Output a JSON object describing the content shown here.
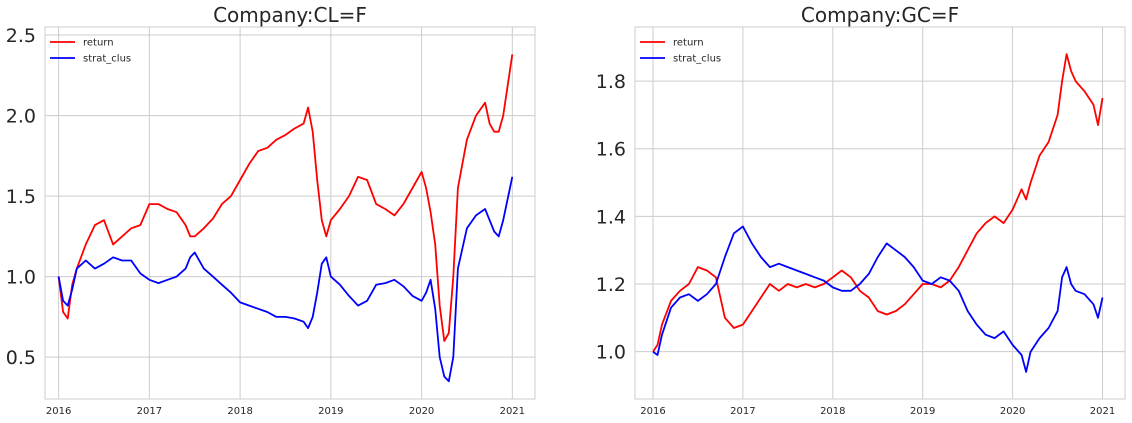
{
  "chart_data": [
    {
      "type": "line",
      "title": "Company:CL=F",
      "xlabel": "",
      "ylabel": "",
      "xlim": [
        2015.85,
        2021.25
      ],
      "ylim": [
        0.24,
        2.55
      ],
      "x_ticks": [
        2016,
        2017,
        2018,
        2019,
        2020,
        2021
      ],
      "x_tick_labels": [
        "2016",
        "2017",
        "2018",
        "2019",
        "2020",
        "2021"
      ],
      "y_ticks": [
        0.5,
        1.0,
        1.5,
        2.0,
        2.5
      ],
      "y_tick_labels": [
        "0.5",
        "1.0",
        "1.5",
        "2.0",
        "2.5"
      ],
      "grid": true,
      "legend_position": "top-left",
      "series": [
        {
          "name": "return",
          "color": "#ff0000",
          "points": [
            [
              2016.0,
              1.0
            ],
            [
              2016.05,
              0.78
            ],
            [
              2016.1,
              0.74
            ],
            [
              2016.15,
              0.95
            ],
            [
              2016.2,
              1.05
            ],
            [
              2016.3,
              1.2
            ],
            [
              2016.4,
              1.32
            ],
            [
              2016.5,
              1.35
            ],
            [
              2016.6,
              1.2
            ],
            [
              2016.7,
              1.25
            ],
            [
              2016.8,
              1.3
            ],
            [
              2016.9,
              1.32
            ],
            [
              2017.0,
              1.45
            ],
            [
              2017.1,
              1.45
            ],
            [
              2017.2,
              1.42
            ],
            [
              2017.3,
              1.4
            ],
            [
              2017.4,
              1.32
            ],
            [
              2017.45,
              1.25
            ],
            [
              2017.5,
              1.25
            ],
            [
              2017.6,
              1.3
            ],
            [
              2017.7,
              1.36
            ],
            [
              2017.8,
              1.45
            ],
            [
              2017.9,
              1.5
            ],
            [
              2018.0,
              1.6
            ],
            [
              2018.1,
              1.7
            ],
            [
              2018.2,
              1.78
            ],
            [
              2018.3,
              1.8
            ],
            [
              2018.4,
              1.85
            ],
            [
              2018.5,
              1.88
            ],
            [
              2018.6,
              1.92
            ],
            [
              2018.7,
              1.95
            ],
            [
              2018.75,
              2.05
            ],
            [
              2018.8,
              1.9
            ],
            [
              2018.85,
              1.6
            ],
            [
              2018.9,
              1.35
            ],
            [
              2018.95,
              1.25
            ],
            [
              2019.0,
              1.35
            ],
            [
              2019.1,
              1.42
            ],
            [
              2019.2,
              1.5
            ],
            [
              2019.3,
              1.62
            ],
            [
              2019.4,
              1.6
            ],
            [
              2019.5,
              1.45
            ],
            [
              2019.6,
              1.42
            ],
            [
              2019.7,
              1.38
            ],
            [
              2019.8,
              1.45
            ],
            [
              2019.9,
              1.55
            ],
            [
              2020.0,
              1.65
            ],
            [
              2020.05,
              1.55
            ],
            [
              2020.1,
              1.4
            ],
            [
              2020.15,
              1.2
            ],
            [
              2020.2,
              0.82
            ],
            [
              2020.25,
              0.6
            ],
            [
              2020.3,
              0.65
            ],
            [
              2020.35,
              1.0
            ],
            [
              2020.4,
              1.55
            ],
            [
              2020.5,
              1.85
            ],
            [
              2020.6,
              2.0
            ],
            [
              2020.7,
              2.08
            ],
            [
              2020.75,
              1.95
            ],
            [
              2020.8,
              1.9
            ],
            [
              2020.85,
              1.9
            ],
            [
              2020.9,
              2.0
            ],
            [
              2021.0,
              2.38
            ]
          ]
        },
        {
          "name": "strat_clus",
          "color": "#0000ff",
          "points": [
            [
              2016.0,
              1.0
            ],
            [
              2016.05,
              0.85
            ],
            [
              2016.1,
              0.82
            ],
            [
              2016.15,
              0.92
            ],
            [
              2016.2,
              1.05
            ],
            [
              2016.3,
              1.1
            ],
            [
              2016.4,
              1.05
            ],
            [
              2016.5,
              1.08
            ],
            [
              2016.6,
              1.12
            ],
            [
              2016.7,
              1.1
            ],
            [
              2016.8,
              1.1
            ],
            [
              2016.9,
              1.02
            ],
            [
              2017.0,
              0.98
            ],
            [
              2017.1,
              0.96
            ],
            [
              2017.2,
              0.98
            ],
            [
              2017.3,
              1.0
            ],
            [
              2017.4,
              1.05
            ],
            [
              2017.45,
              1.12
            ],
            [
              2017.5,
              1.15
            ],
            [
              2017.6,
              1.05
            ],
            [
              2017.7,
              1.0
            ],
            [
              2017.8,
              0.95
            ],
            [
              2017.9,
              0.9
            ],
            [
              2018.0,
              0.84
            ],
            [
              2018.1,
              0.82
            ],
            [
              2018.2,
              0.8
            ],
            [
              2018.3,
              0.78
            ],
            [
              2018.4,
              0.75
            ],
            [
              2018.5,
              0.75
            ],
            [
              2018.6,
              0.74
            ],
            [
              2018.7,
              0.72
            ],
            [
              2018.75,
              0.68
            ],
            [
              2018.8,
              0.75
            ],
            [
              2018.85,
              0.9
            ],
            [
              2018.9,
              1.08
            ],
            [
              2018.95,
              1.12
            ],
            [
              2019.0,
              1.0
            ],
            [
              2019.1,
              0.95
            ],
            [
              2019.2,
              0.88
            ],
            [
              2019.3,
              0.82
            ],
            [
              2019.4,
              0.85
            ],
            [
              2019.5,
              0.95
            ],
            [
              2019.6,
              0.96
            ],
            [
              2019.7,
              0.98
            ],
            [
              2019.8,
              0.94
            ],
            [
              2019.9,
              0.88
            ],
            [
              2020.0,
              0.85
            ],
            [
              2020.05,
              0.9
            ],
            [
              2020.1,
              0.98
            ],
            [
              2020.15,
              0.8
            ],
            [
              2020.2,
              0.5
            ],
            [
              2020.25,
              0.38
            ],
            [
              2020.3,
              0.35
            ],
            [
              2020.35,
              0.5
            ],
            [
              2020.4,
              1.05
            ],
            [
              2020.5,
              1.3
            ],
            [
              2020.6,
              1.38
            ],
            [
              2020.7,
              1.42
            ],
            [
              2020.75,
              1.35
            ],
            [
              2020.8,
              1.28
            ],
            [
              2020.85,
              1.25
            ],
            [
              2020.9,
              1.35
            ],
            [
              2021.0,
              1.62
            ]
          ]
        }
      ]
    },
    {
      "type": "line",
      "title": "Company:GC=F",
      "xlabel": "",
      "ylabel": "",
      "xlim": [
        2015.8,
        2021.25
      ],
      "ylim": [
        0.86,
        1.96
      ],
      "x_ticks": [
        2016,
        2017,
        2018,
        2019,
        2020,
        2021
      ],
      "x_tick_labels": [
        "2016",
        "2017",
        "2018",
        "2019",
        "2020",
        "2021"
      ],
      "y_ticks": [
        1.0,
        1.2,
        1.4,
        1.6,
        1.8
      ],
      "y_tick_labels": [
        "1.0",
        "1.2",
        "1.4",
        "1.6",
        "1.8"
      ],
      "grid": true,
      "legend_position": "top-left",
      "series": [
        {
          "name": "return",
          "color": "#ff0000",
          "points": [
            [
              2016.0,
              1.0
            ],
            [
              2016.05,
              1.02
            ],
            [
              2016.1,
              1.08
            ],
            [
              2016.2,
              1.15
            ],
            [
              2016.3,
              1.18
            ],
            [
              2016.4,
              1.2
            ],
            [
              2016.5,
              1.25
            ],
            [
              2016.6,
              1.24
            ],
            [
              2016.7,
              1.22
            ],
            [
              2016.8,
              1.1
            ],
            [
              2016.9,
              1.07
            ],
            [
              2017.0,
              1.08
            ],
            [
              2017.1,
              1.12
            ],
            [
              2017.2,
              1.16
            ],
            [
              2017.3,
              1.2
            ],
            [
              2017.4,
              1.18
            ],
            [
              2017.5,
              1.2
            ],
            [
              2017.6,
              1.19
            ],
            [
              2017.7,
              1.2
            ],
            [
              2017.8,
              1.19
            ],
            [
              2017.9,
              1.2
            ],
            [
              2018.0,
              1.22
            ],
            [
              2018.1,
              1.24
            ],
            [
              2018.2,
              1.22
            ],
            [
              2018.3,
              1.18
            ],
            [
              2018.4,
              1.16
            ],
            [
              2018.5,
              1.12
            ],
            [
              2018.6,
              1.11
            ],
            [
              2018.7,
              1.12
            ],
            [
              2018.8,
              1.14
            ],
            [
              2018.9,
              1.17
            ],
            [
              2019.0,
              1.2
            ],
            [
              2019.1,
              1.2
            ],
            [
              2019.2,
              1.19
            ],
            [
              2019.3,
              1.21
            ],
            [
              2019.4,
              1.25
            ],
            [
              2019.5,
              1.3
            ],
            [
              2019.6,
              1.35
            ],
            [
              2019.7,
              1.38
            ],
            [
              2019.8,
              1.4
            ],
            [
              2019.9,
              1.38
            ],
            [
              2020.0,
              1.42
            ],
            [
              2020.1,
              1.48
            ],
            [
              2020.15,
              1.45
            ],
            [
              2020.2,
              1.5
            ],
            [
              2020.3,
              1.58
            ],
            [
              2020.4,
              1.62
            ],
            [
              2020.5,
              1.7
            ],
            [
              2020.55,
              1.8
            ],
            [
              2020.6,
              1.88
            ],
            [
              2020.65,
              1.83
            ],
            [
              2020.7,
              1.8
            ],
            [
              2020.8,
              1.77
            ],
            [
              2020.9,
              1.73
            ],
            [
              2020.95,
              1.67
            ],
            [
              2021.0,
              1.75
            ]
          ]
        },
        {
          "name": "strat_clus",
          "color": "#0000ff",
          "points": [
            [
              2016.0,
              1.0
            ],
            [
              2016.05,
              0.99
            ],
            [
              2016.1,
              1.05
            ],
            [
              2016.2,
              1.13
            ],
            [
              2016.3,
              1.16
            ],
            [
              2016.4,
              1.17
            ],
            [
              2016.5,
              1.15
            ],
            [
              2016.6,
              1.17
            ],
            [
              2016.7,
              1.2
            ],
            [
              2016.8,
              1.28
            ],
            [
              2016.9,
              1.35
            ],
            [
              2017.0,
              1.37
            ],
            [
              2017.1,
              1.32
            ],
            [
              2017.2,
              1.28
            ],
            [
              2017.3,
              1.25
            ],
            [
              2017.4,
              1.26
            ],
            [
              2017.5,
              1.25
            ],
            [
              2017.6,
              1.24
            ],
            [
              2017.7,
              1.23
            ],
            [
              2017.8,
              1.22
            ],
            [
              2017.9,
              1.21
            ],
            [
              2018.0,
              1.19
            ],
            [
              2018.1,
              1.18
            ],
            [
              2018.2,
              1.18
            ],
            [
              2018.3,
              1.2
            ],
            [
              2018.4,
              1.23
            ],
            [
              2018.5,
              1.28
            ],
            [
              2018.6,
              1.32
            ],
            [
              2018.7,
              1.3
            ],
            [
              2018.8,
              1.28
            ],
            [
              2018.9,
              1.25
            ],
            [
              2019.0,
              1.21
            ],
            [
              2019.1,
              1.2
            ],
            [
              2019.2,
              1.22
            ],
            [
              2019.3,
              1.21
            ],
            [
              2019.4,
              1.18
            ],
            [
              2019.5,
              1.12
            ],
            [
              2019.6,
              1.08
            ],
            [
              2019.7,
              1.05
            ],
            [
              2019.8,
              1.04
            ],
            [
              2019.9,
              1.06
            ],
            [
              2020.0,
              1.02
            ],
            [
              2020.1,
              0.99
            ],
            [
              2020.15,
              0.94
            ],
            [
              2020.2,
              1.0
            ],
            [
              2020.3,
              1.04
            ],
            [
              2020.4,
              1.07
            ],
            [
              2020.5,
              1.12
            ],
            [
              2020.55,
              1.22
            ],
            [
              2020.6,
              1.25
            ],
            [
              2020.65,
              1.2
            ],
            [
              2020.7,
              1.18
            ],
            [
              2020.8,
              1.17
            ],
            [
              2020.9,
              1.14
            ],
            [
              2020.95,
              1.1
            ],
            [
              2021.0,
              1.16
            ]
          ]
        }
      ]
    }
  ]
}
